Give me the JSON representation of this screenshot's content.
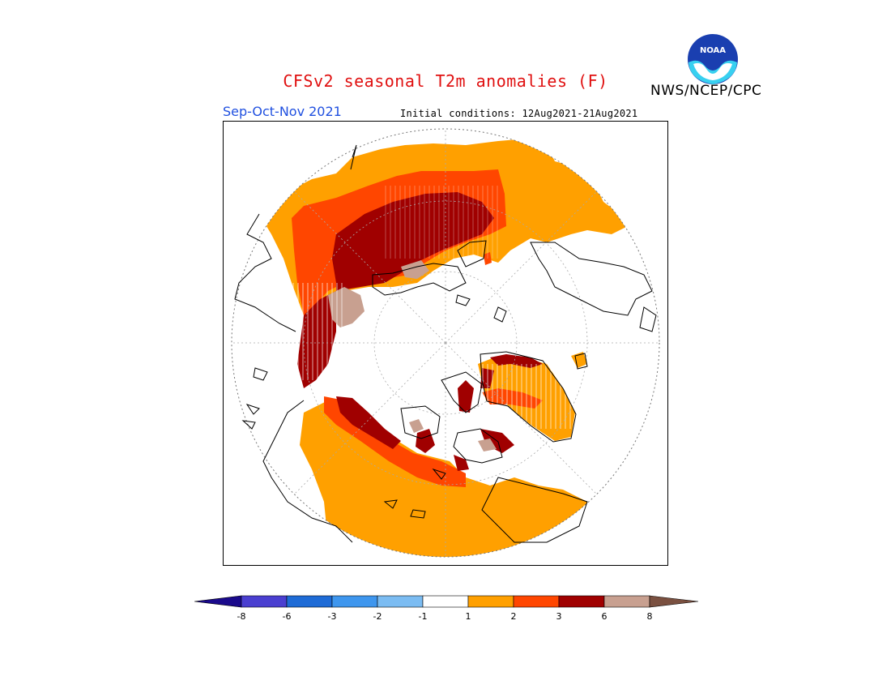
{
  "header": {
    "title": "CFSv2 seasonal T2m anomalies (F)",
    "org": "NWS/NCEP/CPC",
    "season": "Sep-Oct-Nov 2021",
    "initial_conditions": "Initial conditions: 12Aug2021-21Aug2021",
    "logo_text": "NOAA"
  },
  "colorbar": {
    "colors": [
      "#1a0a8c",
      "#4a3fd0",
      "#1e6bd6",
      "#3e96ee",
      "#7bbcf2",
      "#ffffff",
      "#ffa000",
      "#ff4600",
      "#a00000",
      "#c8a090",
      "#7a5040"
    ],
    "tick_labels": [
      "-8",
      "-6",
      "-3",
      "-2",
      "-1",
      "1",
      "2",
      "3",
      "6",
      "8"
    ]
  },
  "map": {
    "projection": "north-polar stereographic",
    "palette": {
      "anom_1_2": "#ffa000",
      "anom_2_3": "#ff4600",
      "anom_3_6": "#a00000",
      "anom_6_8": "#c8a090"
    }
  }
}
